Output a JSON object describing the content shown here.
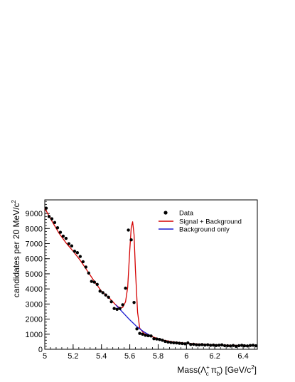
{
  "chart_data": {
    "type": "scatter",
    "title": "",
    "xlabel": {
      "prefix": "Mass(",
      "lambda": "Λ",
      "lambda_sub": "c",
      "lambda_sup": "+",
      "pi": "π",
      "pi_sub": "b",
      "pi_sup": "−",
      "suffix": ") [GeV/c",
      "suffix_sup": "2",
      "close": "]"
    },
    "ylabel": {
      "text": "candidates per 20 MeV/c",
      "sup": "2"
    },
    "xlim": [
      5.0,
      6.5
    ],
    "ylim": [
      0,
      9900
    ],
    "x_ticks": [
      5.0,
      5.2,
      5.4,
      5.6,
      5.8,
      6.0,
      6.2,
      6.4
    ],
    "x_tick_labels": [
      "5",
      "5.2",
      "5.4",
      "5.6",
      "5.8",
      "6",
      "6.2",
      "6.4"
    ],
    "y_ticks": [
      0,
      1000,
      2000,
      3000,
      4000,
      5000,
      6000,
      7000,
      8000,
      9000
    ],
    "y_tick_labels": [
      "0",
      "1000",
      "2000",
      "3000",
      "4000",
      "5000",
      "6000",
      "7000",
      "8000",
      "9000"
    ],
    "legend_position": "top-right",
    "colors": {
      "data": "#000000",
      "signal_background": "#d40000",
      "background_only": "#1a1ad0"
    },
    "series": [
      {
        "name": "Data",
        "kind": "points",
        "x": [
          5.01,
          5.03,
          5.05,
          5.07,
          5.09,
          5.11,
          5.13,
          5.15,
          5.17,
          5.19,
          5.21,
          5.23,
          5.25,
          5.27,
          5.29,
          5.31,
          5.33,
          5.35,
          5.37,
          5.39,
          5.41,
          5.43,
          5.45,
          5.47,
          5.49,
          5.51,
          5.53,
          5.55,
          5.57,
          5.59,
          5.61,
          5.63,
          5.65,
          5.67,
          5.69,
          5.71,
          5.73,
          5.75,
          5.77,
          5.79,
          5.81,
          5.83,
          5.85,
          5.87,
          5.89,
          5.91,
          5.93,
          5.95,
          5.97,
          5.99,
          6.01,
          6.03,
          6.05,
          6.07,
          6.09,
          6.11,
          6.13,
          6.15,
          6.17,
          6.19,
          6.21,
          6.23,
          6.25,
          6.27,
          6.29,
          6.31,
          6.33,
          6.35,
          6.37,
          6.39,
          6.41,
          6.43,
          6.45,
          6.47,
          6.49
        ],
        "y": [
          9350,
          8800,
          8650,
          8400,
          8050,
          7750,
          7500,
          7350,
          7000,
          6850,
          6500,
          6400,
          6150,
          5800,
          5450,
          5050,
          4500,
          4450,
          4300,
          3850,
          3750,
          3600,
          3450,
          3150,
          2700,
          2650,
          2700,
          2950,
          4050,
          7900,
          7250,
          3100,
          1350,
          1050,
          1000,
          930,
          900,
          880,
          700,
          680,
          650,
          600,
          520,
          480,
          450,
          430,
          420,
          400,
          380,
          360,
          420,
          320,
          330,
          300,
          290,
          310,
          280,
          300,
          260,
          280,
          250,
          270,
          290,
          240,
          230,
          220,
          250,
          200,
          240,
          260,
          230,
          220,
          250,
          270,
          230
        ]
      },
      {
        "name": "Signal + Background",
        "kind": "line",
        "x": [
          5.0,
          5.05,
          5.1,
          5.15,
          5.2,
          5.25,
          5.3,
          5.35,
          5.4,
          5.45,
          5.5,
          5.53,
          5.55,
          5.57,
          5.585,
          5.6,
          5.61,
          5.62,
          5.63,
          5.64,
          5.655,
          5.67,
          5.7,
          5.75,
          5.8,
          5.85,
          5.9,
          5.95,
          6.0,
          6.1,
          6.2,
          6.3,
          6.4,
          6.5
        ],
        "y": [
          9350,
          8500,
          7700,
          7050,
          6500,
          5900,
          5200,
          4500,
          3850,
          3450,
          2950,
          2720,
          2780,
          3150,
          4100,
          6600,
          8050,
          8450,
          7600,
          5200,
          2450,
          1400,
          1050,
          860,
          700,
          580,
          500,
          440,
          400,
          340,
          295,
          265,
          245,
          230
        ]
      },
      {
        "name": "Background only",
        "kind": "line",
        "x": [
          5.5,
          5.55,
          5.6,
          5.65,
          5.7,
          5.75
        ],
        "y": [
          2950,
          2450,
          1950,
          1500,
          1150,
          880
        ]
      }
    ]
  }
}
